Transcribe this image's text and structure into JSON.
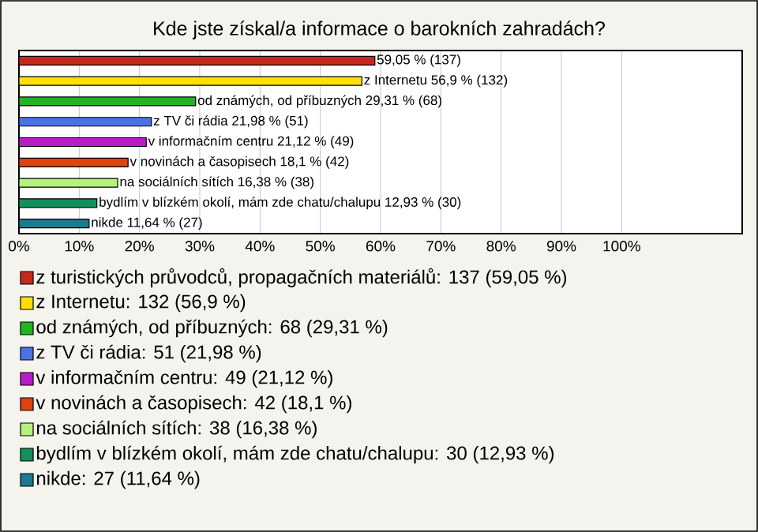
{
  "chart_data": {
    "type": "bar",
    "orientation": "horizontal",
    "title": "Kde jste získal/a informace o barokních zahradách?",
    "categories": [
      null,
      null,
      null,
      null,
      null,
      null,
      null,
      null,
      null
    ],
    "values": [
      59.05,
      56.9,
      29.31,
      21.98,
      21.12,
      18.1,
      16.38,
      12.93,
      11.64
    ],
    "colors": [
      "#c8281c",
      "#ffe000",
      "#22b422",
      "#4a72e8",
      "#b81cc8",
      "#e0420e",
      "#b4f27a",
      "#14905c",
      "#1c7a90"
    ],
    "value_labels": [
      "59,05 % (137)",
      "z Internetu 56,9 % (132)",
      "od známých, od příbuzných 29,31 % (68)",
      "z TV či rádia 21,98 % (51)",
      "v informačním centru 21,12 % (49)",
      "v novinách a časopisech 18,1 % (42)",
      "na sociálních sítích 16,38 % (38)",
      "bydlím v blízkém okolí, mám zde chatu/chalupu 12,93 % (30)",
      "nikde 11,64 % (27)"
    ],
    "annotations": [
      "z turistických průvodců, propagačních materiálů: 137 (59,05 %)",
      "z Internetu: 132 (56,9 %)",
      "od známých, od příbuzných: 68 (29,31 %)",
      "z TV či rádia: 51 (21,98 %)",
      "v informačním centru: 49 (21,12 %)",
      "v novinách a časopisech: 42 (18,1 %)",
      "na sociálních sítích: 38 (16,38 %)",
      "bydlím v blízkém okolí, mám zde chatu/chalupu: 30 (12,93 %)",
      "nikde: 27 (11,64 %)"
    ],
    "xlim": [
      0,
      120
    ],
    "xticks": [
      {
        "value": 0,
        "label": "0%"
      },
      {
        "value": 10,
        "label": "10%"
      },
      {
        "value": 20,
        "label": "20%"
      },
      {
        "value": 30,
        "label": "30%"
      },
      {
        "value": 40,
        "label": "40%"
      },
      {
        "value": 50,
        "label": "50%"
      },
      {
        "value": 60,
        "label": "60%"
      },
      {
        "value": 70,
        "label": "70%"
      },
      {
        "value": 80,
        "label": "80%"
      },
      {
        "value": 90,
        "label": "90%"
      },
      {
        "value": 100,
        "label": "100%"
      }
    ],
    "grid": "x"
  }
}
